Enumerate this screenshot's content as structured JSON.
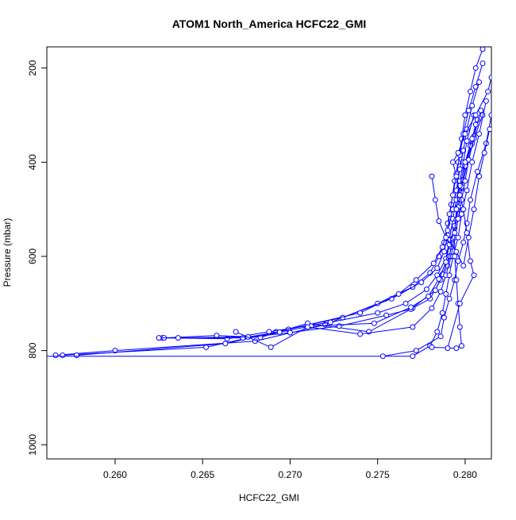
{
  "chart_data": {
    "type": "line",
    "title": "ATOM1 North_America HCFC22_GMI",
    "xlabel": "HCFC22_GMI",
    "ylabel": "Pressure (mbar)",
    "xlim": [
      0.2561,
      0.2815
    ],
    "ylim": [
      1030,
      155
    ],
    "y_reversed": true,
    "grid": false,
    "x_ticks": [
      "0.260",
      "0.265",
      "0.270",
      "0.275",
      "0.280"
    ],
    "y_ticks": [
      "200",
      "400",
      "600",
      "800",
      "1000"
    ],
    "series_color": "#0000ff",
    "marker": "open-circle",
    "series": [
      {
        "x": [
          0.2566,
          0.26,
          0.268,
          0.272,
          0.275,
          0.277,
          0.278,
          0.2785,
          0.2788,
          0.279,
          0.2792,
          0.2794,
          0.2796,
          0.2798,
          0.28,
          0.2803,
          0.2806,
          0.281
        ],
        "y": [
          810,
          800,
          780,
          745,
          700,
          665,
          635,
          600,
          570,
          530,
          490,
          440,
          400,
          350,
          300,
          250,
          200,
          160
        ]
      },
      {
        "x": [
          0.257,
          0.2652,
          0.2692,
          0.273,
          0.2758,
          0.2775,
          0.2784,
          0.2788,
          0.279,
          0.2791,
          0.2793,
          0.2795,
          0.2797,
          0.2799,
          0.2802,
          0.2806,
          0.281
        ],
        "y": [
          810,
          793,
          760,
          730,
          690,
          655,
          625,
          590,
          555,
          510,
          470,
          425,
          385,
          340,
          290,
          240,
          190
        ]
      },
      {
        "x": [
          0.2578,
          0.2663,
          0.2699,
          0.274,
          0.2762,
          0.2772,
          0.2782,
          0.2787,
          0.279,
          0.2793,
          0.2795,
          0.2797,
          0.2799,
          0.2801,
          0.2804,
          0.2808
        ],
        "y": [
          810,
          785,
          755,
          720,
          680,
          650,
          615,
          580,
          545,
          500,
          460,
          415,
          375,
          330,
          280,
          230
        ]
      },
      {
        "x": [
          0.2627,
          0.2664,
          0.2688,
          0.2723,
          0.275,
          0.2766,
          0.2778,
          0.2784,
          0.2789,
          0.2791,
          0.2793,
          0.2795,
          0.2797,
          0.2799,
          0.2801,
          0.2805
        ],
        "y": [
          773,
          775,
          760,
          740,
          720,
          700,
          670,
          640,
          605,
          565,
          520,
          480,
          440,
          400,
          355,
          300
        ]
      },
      {
        "x": [
          0.2628,
          0.2658,
          0.2683,
          0.271,
          0.2745,
          0.277,
          0.278,
          0.2786,
          0.279,
          0.2792,
          0.2794,
          0.2796,
          0.2798,
          0.28,
          0.2804,
          0.2807
        ],
        "y": [
          773,
          768,
          772,
          742,
          760,
          710,
          690,
          650,
          620,
          580,
          540,
          500,
          455,
          410,
          360,
          310
        ]
      },
      {
        "x": [
          0.2625,
          0.2673,
          0.27,
          0.2728,
          0.2755,
          0.2769,
          0.2783,
          0.2787,
          0.2791,
          0.2793,
          0.2795,
          0.2797,
          0.2799,
          0.2802,
          0.2805,
          0.2809
        ],
        "y": [
          773,
          773,
          762,
          748,
          725,
          712,
          672,
          638,
          600,
          562,
          522,
          478,
          438,
          395,
          345,
          290
        ]
      },
      {
        "x": [
          0.2636,
          0.2676,
          0.2694,
          0.2712,
          0.2748,
          0.2769,
          0.2779,
          0.2785,
          0.2789,
          0.2791,
          0.2794,
          0.2796,
          0.2798,
          0.28,
          0.2803,
          0.2806
        ],
        "y": [
          773,
          771,
          761,
          748,
          742,
          708,
          685,
          648,
          612,
          575,
          535,
          495,
          452,
          408,
          365,
          320
        ]
      },
      {
        "x": [
          0.2669,
          0.2689,
          0.271,
          0.274,
          0.277,
          0.2781,
          0.2786,
          0.2789,
          0.2792,
          0.2794,
          0.2796,
          0.2798,
          0.28,
          0.2802,
          0.2805,
          0.281
        ],
        "y": [
          760,
          793,
          750,
          765,
          750,
          710,
          675,
          640,
          600,
          560,
          520,
          480,
          440,
          395,
          350,
          300
        ]
      },
      {
        "x": [
          0.2546,
          0.277,
          0.278,
          0.2784,
          0.2787,
          0.2789,
          0.2791,
          0.2793,
          0.2796,
          0.2798,
          0.2801,
          0.2804,
          0.2808,
          0.2812
        ],
        "y": [
          812,
          812,
          790,
          760,
          720,
          680,
          640,
          600,
          560,
          510,
          460,
          400,
          340,
          270
        ]
      },
      {
        "x": [
          0.2753,
          0.2772,
          0.2786,
          0.2788,
          0.2791,
          0.2794,
          0.2796,
          0.2799,
          0.2801,
          0.2803,
          0.2807,
          0.2812,
          0.2815
        ],
        "y": [
          812,
          800,
          770,
          730,
          690,
          650,
          610,
          570,
          530,
          480,
          420,
          360,
          300
        ]
      },
      {
        "x": [
          0.2781,
          0.2795,
          0.2798,
          0.2797,
          0.2796,
          0.2795,
          0.2794,
          0.2794,
          0.2795,
          0.2797,
          0.28,
          0.2804
        ],
        "y": [
          793,
          795,
          790,
          750,
          700,
          650,
          600,
          550,
          500,
          450,
          400,
          350
        ]
      },
      {
        "x": [
          0.279,
          0.2797,
          0.2805,
          0.2803,
          0.2801,
          0.2799,
          0.2797,
          0.2795,
          0.2793,
          0.2796,
          0.28,
          0.2806,
          0.2813,
          0.2815
        ],
        "y": [
          795,
          700,
          640,
          610,
          550,
          500,
          470,
          430,
          400,
          380,
          340,
          300,
          250,
          220
        ]
      },
      {
        "x": [
          0.2781,
          0.2783,
          0.2785,
          0.2789,
          0.2795,
          0.2799,
          0.2802,
          0.2805,
          0.2808,
          0.2811,
          0.2814
        ],
        "y": [
          430,
          480,
          525,
          560,
          590,
          620,
          560,
          500,
          430,
          380,
          330
        ]
      }
    ]
  }
}
